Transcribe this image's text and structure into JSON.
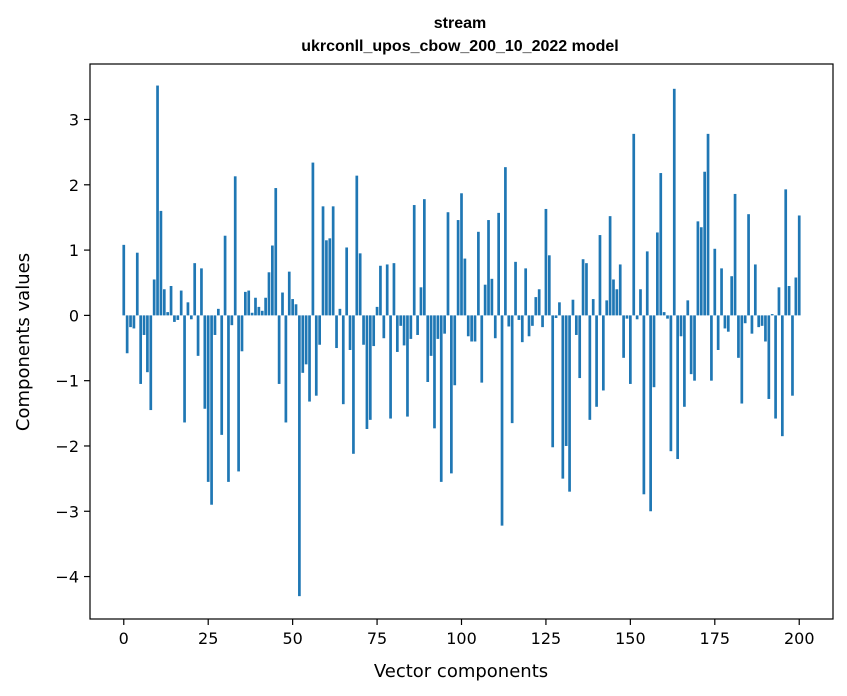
{
  "chart_data": {
    "type": "bar",
    "title": "stream",
    "subtitle": "ukrconll_upos_cbow_200_10_2022 model",
    "xlabel": "Vector components",
    "ylabel": "Components values",
    "xlim": [
      -10,
      210
    ],
    "ylim": [
      -4.65,
      3.85
    ],
    "xticks": [
      0,
      25,
      50,
      75,
      100,
      125,
      150,
      175,
      200
    ],
    "xtick_labels": [
      "0",
      "25",
      "50",
      "75",
      "100",
      "125",
      "150",
      "175",
      "200"
    ],
    "yticks": [
      -4,
      -3,
      -2,
      -1,
      0,
      1,
      2,
      3
    ],
    "ytick_labels": [
      "−4",
      "−3",
      "−2",
      "−1",
      "0",
      "1",
      "2",
      "3"
    ],
    "color": "#1f77b4",
    "grid": false,
    "values": [
      1.08,
      -0.58,
      -0.18,
      -0.2,
      0.96,
      -1.05,
      -0.3,
      -0.87,
      -1.45,
      0.55,
      3.52,
      1.6,
      0.4,
      0.05,
      0.45,
      -0.1,
      -0.07,
      0.38,
      -1.64,
      0.2,
      -0.06,
      0.8,
      -0.62,
      0.72,
      -1.43,
      -2.55,
      -2.9,
      -0.3,
      0.1,
      -1.83,
      1.22,
      -2.55,
      -0.15,
      2.13,
      -2.39,
      -0.55,
      0.36,
      0.38,
      0.04,
      0.27,
      0.13,
      0.07,
      0.27,
      0.66,
      1.07,
      1.95,
      -1.05,
      0.35,
      -1.64,
      0.67,
      0.25,
      0.17,
      -4.3,
      -0.88,
      -0.75,
      -1.32,
      2.34,
      -1.23,
      -0.45,
      1.67,
      1.15,
      1.18,
      1.67,
      -0.5,
      0.1,
      -1.36,
      1.04,
      -0.53,
      -2.12,
      2.14,
      0.95,
      -0.45,
      -1.74,
      -1.6,
      -0.47,
      0.13,
      0.76,
      -0.35,
      0.78,
      -1.58,
      0.8,
      -0.56,
      -0.16,
      -0.46,
      -1.55,
      -0.36,
      1.69,
      -0.3,
      0.43,
      1.78,
      -1.02,
      -0.62,
      -1.73,
      -0.36,
      -2.55,
      -0.28,
      1.58,
      -2.42,
      -1.07,
      1.46,
      1.87,
      0.87,
      -0.32,
      -0.4,
      -0.4,
      1.28,
      -1.03,
      0.47,
      1.46,
      0.56,
      -0.35,
      1.57,
      -3.22,
      2.27,
      -0.17,
      -1.65,
      0.82,
      -0.07,
      -0.41,
      0.72,
      -0.32,
      -0.16,
      0.28,
      0.4,
      -0.18,
      1.63,
      0.92,
      -2.02,
      -0.04,
      0.2,
      -2.5,
      -2.0,
      -2.7,
      0.24,
      -0.3,
      -0.96,
      0.86,
      0.8,
      -1.6,
      0.25,
      -1.4,
      1.23,
      -1.15,
      0.23,
      1.52,
      0.55,
      0.4,
      0.78,
      -0.65,
      -0.05,
      -1.05,
      2.78,
      -0.06,
      0.4,
      -2.74,
      0.98,
      -3.0,
      -1.1,
      1.27,
      2.18,
      0.05,
      -0.05,
      -2.08,
      3.47,
      -2.2,
      -0.32,
      -1.4,
      0.23,
      -0.9,
      -1.0,
      1.44,
      1.35,
      2.2,
      2.78,
      -1.0,
      1.02,
      -0.53,
      0.72,
      -0.2,
      -0.25,
      0.6,
      1.86,
      -0.65,
      -1.35,
      -0.12,
      1.55,
      -0.28,
      0.78,
      -0.18,
      -0.16,
      -0.4,
      -1.28,
      0.02,
      -1.58,
      0.43,
      -1.85,
      1.93,
      0.45,
      -1.23,
      0.58,
      1.53
    ]
  }
}
